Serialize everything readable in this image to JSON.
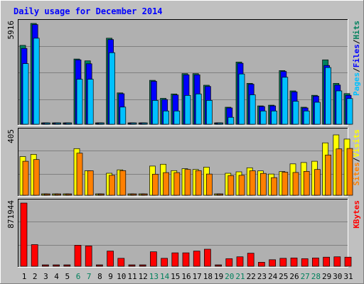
{
  "title": "Daily usage for December 2014",
  "colors": {
    "background": "#c0c0c0",
    "plot": "#b0b0b0",
    "grid": "#808080",
    "title": "#0000ff",
    "hits": "#00805c",
    "files": "#0000ff",
    "pages": "#00c0ff",
    "visits": "#ffff00",
    "sites": "#ff8000",
    "kbytes": "#ff0000",
    "weekend": "#00805c",
    "weekday": "#000000"
  },
  "right_labels": {
    "top": [
      "Pages",
      "Files",
      "Hits"
    ],
    "mid": [
      "Sites",
      "Visits"
    ],
    "bottom": [
      "KBytes"
    ]
  },
  "chart_data": [
    {
      "type": "bar",
      "title": "Daily usage for December 2014",
      "panel": "hits-files-pages",
      "categories": [
        "1",
        "2",
        "3",
        "4",
        "5",
        "6",
        "7",
        "8",
        "9",
        "10",
        "11",
        "12",
        "13",
        "14",
        "15",
        "16",
        "17",
        "18",
        "19",
        "20",
        "21",
        "22",
        "23",
        "24",
        "25",
        "26",
        "27",
        "28",
        "29",
        "30",
        "31"
      ],
      "weekend_days": [
        "6",
        "7",
        "13",
        "14",
        "20",
        "21",
        "27",
        "28"
      ],
      "ymax_label": "5916",
      "ylim": [
        0,
        5916
      ],
      "series": [
        {
          "name": "Hits",
          "values": [
            4630,
            5916,
            0,
            0,
            0,
            3830,
            3720,
            0,
            5050,
            1840,
            0,
            0,
            2580,
            1520,
            1780,
            2970,
            2970,
            2290,
            0,
            1000,
            3650,
            2400,
            1080,
            1120,
            3150,
            1960,
            1000,
            1700,
            3780,
            2400,
            1800
          ]
        },
        {
          "name": "Files",
          "values": [
            4450,
            5850,
            0,
            0,
            0,
            3780,
            3550,
            0,
            4970,
            1790,
            0,
            0,
            2520,
            1450,
            1720,
            2900,
            2900,
            2220,
            0,
            960,
            3580,
            2350,
            1040,
            1080,
            3100,
            1900,
            960,
            1650,
            3450,
            2300,
            1700
          ]
        },
        {
          "name": "Pages",
          "values": [
            3560,
            5050,
            0,
            0,
            0,
            2640,
            2640,
            0,
            4200,
            1010,
            0,
            0,
            1400,
            780,
            780,
            1690,
            1780,
            1400,
            0,
            410,
            2950,
            1730,
            780,
            780,
            2760,
            1350,
            780,
            1290,
            3330,
            1960,
            1510
          ]
        }
      ]
    },
    {
      "type": "bar",
      "panel": "visits-sites",
      "categories": [
        "1",
        "2",
        "3",
        "4",
        "5",
        "6",
        "7",
        "8",
        "9",
        "10",
        "11",
        "12",
        "13",
        "14",
        "15",
        "16",
        "17",
        "18",
        "19",
        "20",
        "21",
        "22",
        "23",
        "24",
        "25",
        "26",
        "27",
        "28",
        "29",
        "30",
        "31"
      ],
      "ymax_label": "405",
      "ylim": [
        0,
        405
      ],
      "series": [
        {
          "name": "Visits",
          "values": [
            248,
            262,
            0,
            0,
            0,
            299,
            157,
            0,
            141,
            163,
            0,
            0,
            187,
            199,
            158,
            170,
            165,
            180,
            0,
            141,
            150,
            176,
            156,
            136,
            152,
            201,
            210,
            218,
            336,
            387,
            360
          ]
        },
        {
          "name": "Sites",
          "values": [
            218,
            229,
            0,
            0,
            0,
            270,
            157,
            0,
            128,
            158,
            0,
            0,
            135,
            145,
            145,
            165,
            158,
            136,
            0,
            126,
            128,
            157,
            140,
            113,
            148,
            146,
            153,
            165,
            258,
            297,
            300
          ]
        }
      ]
    },
    {
      "type": "bar",
      "panel": "kbytes",
      "categories": [
        "1",
        "2",
        "3",
        "4",
        "5",
        "6",
        "7",
        "8",
        "9",
        "10",
        "11",
        "12",
        "13",
        "14",
        "15",
        "16",
        "17",
        "18",
        "19",
        "20",
        "21",
        "22",
        "23",
        "24",
        "25",
        "26",
        "27",
        "28",
        "29",
        "30",
        "31"
      ],
      "ymax_label": "871944",
      "ylim": [
        0,
        871944
      ],
      "series": [
        {
          "name": "KBytes",
          "values": [
            871944,
            299000,
            0,
            0,
            0,
            290000,
            280000,
            0,
            210000,
            110000,
            0,
            0,
            200000,
            110000,
            185000,
            185000,
            210000,
            235000,
            0,
            105000,
            130000,
            180000,
            55000,
            90000,
            110000,
            115000,
            105000,
            115000,
            125000,
            130000,
            125000
          ]
        }
      ]
    }
  ]
}
